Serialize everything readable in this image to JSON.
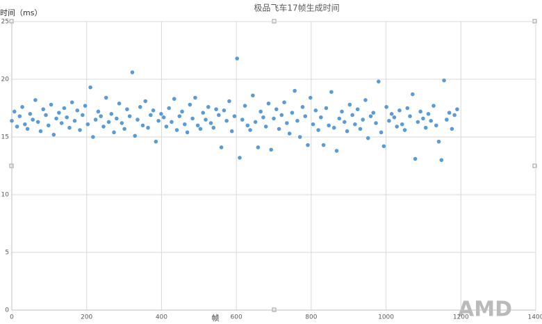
{
  "chart_data": {
    "type": "scatter",
    "title": "极品飞车17帧生成时间",
    "y_label": "时间（ms）",
    "x_label": "帧",
    "watermark": "AMD",
    "color": "#5b9bd5",
    "grid": true,
    "xlim": [
      0,
      1400
    ],
    "xticks": [
      0,
      200,
      400,
      600,
      800,
      1000,
      1200,
      1400
    ],
    "ylim": [
      0,
      25
    ],
    "yticks": [
      0,
      5,
      10,
      15,
      20,
      25
    ],
    "x": [
      0,
      7,
      14,
      21,
      28,
      35,
      42,
      49,
      56,
      63,
      70,
      77,
      84,
      91,
      98,
      105,
      112,
      119,
      126,
      133,
      140,
      147,
      154,
      161,
      168,
      175,
      182,
      189,
      196,
      203,
      210,
      217,
      224,
      231,
      238,
      245,
      252,
      259,
      266,
      273,
      280,
      287,
      294,
      301,
      308,
      315,
      322,
      329,
      336,
      343,
      350,
      357,
      364,
      371,
      378,
      385,
      392,
      399,
      406,
      413,
      420,
      427,
      434,
      441,
      448,
      455,
      462,
      469,
      476,
      483,
      490,
      497,
      504,
      511,
      518,
      525,
      532,
      539,
      546,
      553,
      560,
      567,
      574,
      581,
      588,
      595,
      602,
      609,
      616,
      623,
      630,
      637,
      644,
      651,
      658,
      665,
      672,
      679,
      686,
      693,
      700,
      707,
      714,
      721,
      728,
      735,
      742,
      749,
      756,
      763,
      770,
      777,
      784,
      791,
      798,
      805,
      812,
      819,
      826,
      833,
      840,
      847,
      854,
      861,
      868,
      875,
      882,
      889,
      896,
      903,
      910,
      917,
      924,
      931,
      938,
      945,
      952,
      959,
      966,
      973,
      980,
      987,
      994,
      1001,
      1008,
      1015,
      1022,
      1029,
      1036,
      1043,
      1050,
      1057,
      1064,
      1071,
      1078,
      1085,
      1092,
      1099,
      1106,
      1113,
      1120,
      1127,
      1134,
      1141,
      1148,
      1155,
      1162,
      1169,
      1176,
      1183,
      1190
    ],
    "values": [
      16.4,
      17.2,
      15.9,
      16.8,
      17.6,
      16.1,
      15.7,
      17.0,
      16.5,
      18.2,
      16.3,
      15.5,
      17.4,
      16.9,
      16.0,
      17.8,
      15.2,
      16.6,
      17.1,
      16.2,
      17.5,
      16.7,
      15.8,
      18.0,
      16.4,
      17.3,
      15.6,
      16.9,
      17.7,
      16.1,
      19.3,
      15.0,
      16.5,
      17.2,
      16.8,
      15.9,
      18.4,
      16.3,
      17.0,
      15.4,
      16.6,
      17.9,
      16.2,
      15.7,
      17.4,
      16.8,
      20.6,
      15.1,
      16.5,
      17.6,
      16.0,
      18.1,
      15.8,
      16.9,
      17.3,
      14.6,
      16.4,
      17.0,
      16.7,
      15.9,
      17.5,
      16.3,
      18.3,
      15.6,
      16.8,
      17.2,
      16.1,
      15.4,
      17.8,
      16.6,
      18.4,
      16.0,
      15.7,
      17.1,
      16.5,
      17.6,
      16.2,
      15.8,
      17.4,
      16.9,
      14.1,
      17.3,
      16.4,
      18.1,
      15.5,
      16.8,
      21.8,
      13.2,
      16.5,
      17.7,
      16.0,
      15.6,
      18.6,
      16.3,
      14.1,
      17.2,
      16.7,
      15.9,
      17.9,
      13.9,
      16.6,
      17.4,
      15.7,
      16.9,
      18.0,
      16.2,
      15.3,
      17.1,
      19.0,
      16.4,
      15.0,
      17.6,
      16.8,
      14.3,
      18.4,
      16.1,
      17.3,
      15.6,
      16.7,
      14.3,
      17.5,
      16.0,
      18.9,
      15.8,
      13.8,
      16.6,
      17.2,
      16.3,
      15.5,
      17.8,
      16.9,
      16.1,
      17.4,
      15.7,
      16.5,
      18.2,
      14.9,
      16.8,
      17.1,
      16.2,
      19.8,
      15.4,
      14.2,
      17.6,
      16.4,
      17.0,
      16.7,
      15.9,
      17.3,
      16.1,
      15.6,
      17.5,
      16.8,
      18.7,
      13.1,
      16.3,
      17.2,
      16.6,
      15.8,
      17.0,
      16.4,
      17.7,
      16.0,
      14.6,
      13.0,
      19.9,
      16.5,
      17.1,
      15.7,
      16.9,
      17.4
    ]
  }
}
